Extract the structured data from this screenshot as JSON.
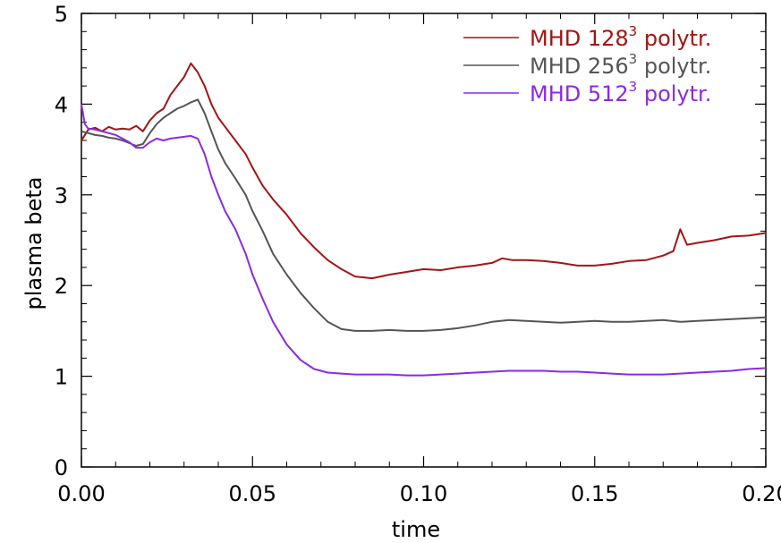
{
  "chart_data": {
    "type": "line",
    "title": "",
    "xlabel": "time",
    "ylabel": "plasma beta",
    "xlim": [
      0.0,
      0.2
    ],
    "ylim": [
      0,
      5
    ],
    "xticks": [
      {
        "value": 0.0,
        "label": "0.00"
      },
      {
        "value": 0.05,
        "label": "0.05"
      },
      {
        "value": 0.1,
        "label": "0.10"
      },
      {
        "value": 0.15,
        "label": "0.15"
      },
      {
        "value": 0.2,
        "label": "0.20"
      }
    ],
    "yticks": [
      {
        "value": 0,
        "label": "0"
      },
      {
        "value": 1,
        "label": "1"
      },
      {
        "value": 2,
        "label": "2"
      },
      {
        "value": 3,
        "label": "3"
      },
      {
        "value": 4,
        "label": "4"
      },
      {
        "value": 5,
        "label": "5"
      }
    ],
    "grid": false,
    "legend_position": "top-right",
    "series": [
      {
        "name_main": "MHD 128",
        "name_sup": "3",
        "name_tail": " polytr.",
        "color": "#a31515",
        "x": [
          0.0,
          0.002,
          0.004,
          0.006,
          0.008,
          0.01,
          0.012,
          0.014,
          0.016,
          0.018,
          0.02,
          0.022,
          0.024,
          0.026,
          0.028,
          0.03,
          0.032,
          0.034,
          0.036,
          0.038,
          0.04,
          0.042,
          0.045,
          0.048,
          0.05,
          0.053,
          0.056,
          0.06,
          0.064,
          0.068,
          0.072,
          0.076,
          0.08,
          0.085,
          0.09,
          0.095,
          0.1,
          0.105,
          0.11,
          0.115,
          0.12,
          0.123,
          0.126,
          0.13,
          0.135,
          0.14,
          0.145,
          0.15,
          0.155,
          0.16,
          0.165,
          0.17,
          0.173,
          0.175,
          0.177,
          0.18,
          0.185,
          0.19,
          0.195,
          0.2
        ],
        "values": [
          3.6,
          3.72,
          3.74,
          3.7,
          3.75,
          3.72,
          3.73,
          3.72,
          3.76,
          3.7,
          3.82,
          3.9,
          3.95,
          4.1,
          4.2,
          4.3,
          4.45,
          4.35,
          4.2,
          4.0,
          3.85,
          3.75,
          3.6,
          3.45,
          3.3,
          3.1,
          2.95,
          2.78,
          2.58,
          2.42,
          2.28,
          2.18,
          2.1,
          2.08,
          2.12,
          2.15,
          2.18,
          2.17,
          2.2,
          2.22,
          2.25,
          2.3,
          2.28,
          2.28,
          2.27,
          2.25,
          2.22,
          2.22,
          2.24,
          2.27,
          2.28,
          2.33,
          2.38,
          2.62,
          2.45,
          2.47,
          2.5,
          2.54,
          2.55,
          2.58
        ]
      },
      {
        "name_main": "MHD 256",
        "name_sup": "3",
        "name_tail": " polytr.",
        "color": "#555555",
        "x": [
          0.0,
          0.002,
          0.004,
          0.006,
          0.008,
          0.01,
          0.012,
          0.014,
          0.016,
          0.018,
          0.02,
          0.022,
          0.024,
          0.026,
          0.028,
          0.03,
          0.032,
          0.034,
          0.036,
          0.038,
          0.04,
          0.042,
          0.045,
          0.048,
          0.05,
          0.053,
          0.056,
          0.06,
          0.064,
          0.068,
          0.072,
          0.076,
          0.08,
          0.085,
          0.09,
          0.095,
          0.1,
          0.105,
          0.11,
          0.115,
          0.12,
          0.125,
          0.13,
          0.135,
          0.14,
          0.145,
          0.15,
          0.155,
          0.16,
          0.165,
          0.17,
          0.175,
          0.18,
          0.185,
          0.19,
          0.195,
          0.2
        ],
        "values": [
          3.7,
          3.68,
          3.66,
          3.65,
          3.63,
          3.62,
          3.6,
          3.57,
          3.54,
          3.56,
          3.68,
          3.78,
          3.85,
          3.9,
          3.95,
          3.98,
          4.02,
          4.05,
          3.9,
          3.7,
          3.5,
          3.35,
          3.18,
          3.0,
          2.82,
          2.6,
          2.35,
          2.12,
          1.92,
          1.75,
          1.6,
          1.52,
          1.5,
          1.5,
          1.51,
          1.5,
          1.5,
          1.51,
          1.53,
          1.56,
          1.6,
          1.62,
          1.61,
          1.6,
          1.59,
          1.6,
          1.61,
          1.6,
          1.6,
          1.61,
          1.62,
          1.6,
          1.61,
          1.62,
          1.63,
          1.64,
          1.65
        ]
      },
      {
        "name_main": "MHD 512",
        "name_sup": "3",
        "name_tail": " polytr.",
        "color": "#8a2be2",
        "x": [
          0.0,
          0.001,
          0.002,
          0.004,
          0.006,
          0.008,
          0.01,
          0.012,
          0.014,
          0.016,
          0.018,
          0.02,
          0.022,
          0.024,
          0.026,
          0.028,
          0.03,
          0.032,
          0.034,
          0.036,
          0.038,
          0.04,
          0.042,
          0.045,
          0.048,
          0.05,
          0.053,
          0.056,
          0.06,
          0.064,
          0.068,
          0.072,
          0.076,
          0.08,
          0.085,
          0.09,
          0.095,
          0.1,
          0.105,
          0.11,
          0.115,
          0.12,
          0.125,
          0.13,
          0.135,
          0.14,
          0.145,
          0.15,
          0.155,
          0.16,
          0.165,
          0.17,
          0.175,
          0.18,
          0.185,
          0.19,
          0.195,
          0.2
        ],
        "values": [
          4.0,
          3.78,
          3.73,
          3.72,
          3.7,
          3.68,
          3.66,
          3.62,
          3.58,
          3.52,
          3.52,
          3.58,
          3.62,
          3.6,
          3.62,
          3.63,
          3.64,
          3.65,
          3.62,
          3.45,
          3.2,
          3.0,
          2.82,
          2.62,
          2.35,
          2.12,
          1.85,
          1.6,
          1.35,
          1.18,
          1.08,
          1.04,
          1.03,
          1.02,
          1.02,
          1.02,
          1.01,
          1.01,
          1.02,
          1.03,
          1.04,
          1.05,
          1.06,
          1.06,
          1.06,
          1.05,
          1.05,
          1.04,
          1.03,
          1.02,
          1.02,
          1.02,
          1.03,
          1.04,
          1.05,
          1.06,
          1.08,
          1.09
        ]
      }
    ]
  }
}
